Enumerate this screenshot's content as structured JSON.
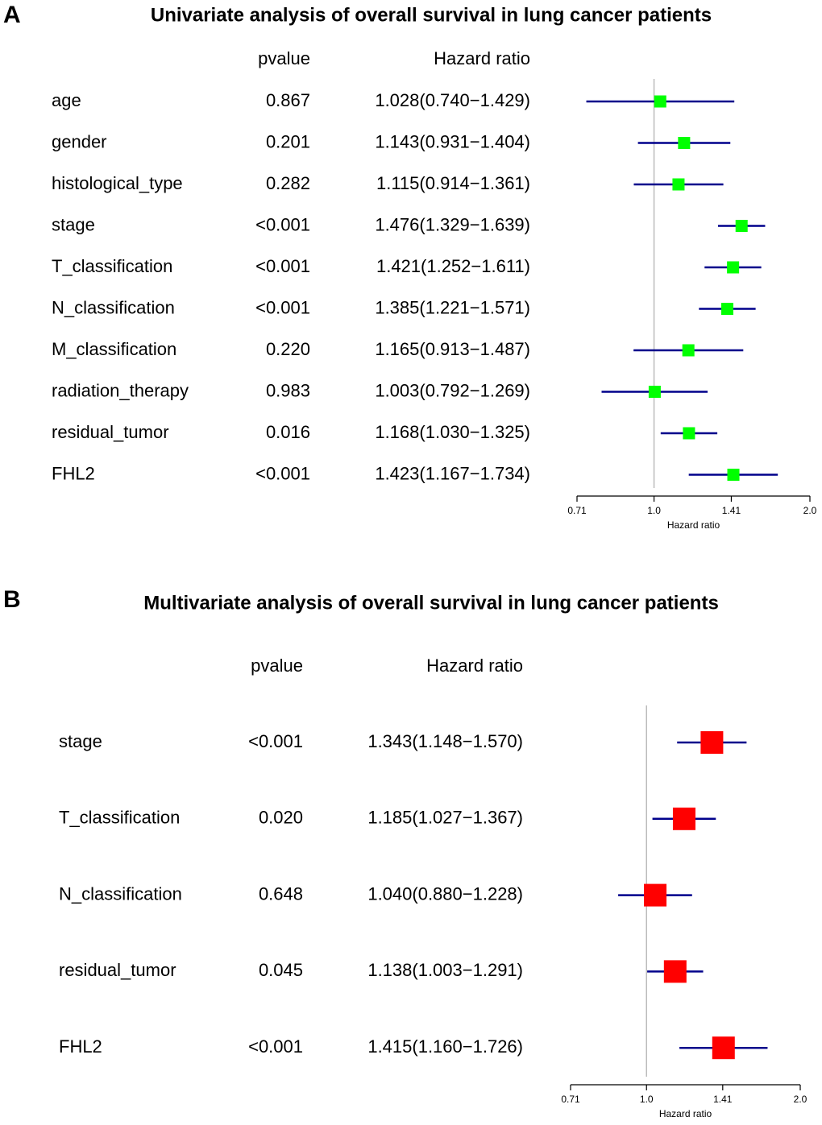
{
  "chart_data": [
    {
      "type": "forest",
      "panel_label": "A",
      "title": "Univariate analysis of overall survival in lung cancer patients",
      "columns": [
        "pvalue",
        "Hazard ratio"
      ],
      "categories": [
        "age",
        "gender",
        "histological_type",
        "stage",
        "T_classification",
        "N_classification",
        "M_classification",
        "radiation_therapy",
        "residual_tumor",
        "FHL2"
      ],
      "pvalues": [
        "0.867",
        "0.201",
        "0.282",
        "<0.001",
        "<0.001",
        "<0.001",
        "0.220",
        "0.983",
        "0.016",
        "<0.001"
      ],
      "value_labels": [
        "1.028(0.740−1.429)",
        "1.143(0.931−1.404)",
        "1.115(0.914−1.361)",
        "1.476(1.329−1.639)",
        "1.421(1.252−1.611)",
        "1.385(1.221−1.571)",
        "1.165(0.913−1.487)",
        "1.003(0.792−1.269)",
        "1.168(1.030−1.325)",
        "1.423(1.167−1.734)"
      ],
      "values": [
        1.028,
        1.143,
        1.115,
        1.476,
        1.421,
        1.385,
        1.165,
        1.003,
        1.168,
        1.423
      ],
      "lower": [
        0.74,
        0.931,
        0.914,
        1.329,
        1.252,
        1.221,
        0.913,
        0.792,
        1.03,
        1.167
      ],
      "upper": [
        1.429,
        1.404,
        1.361,
        1.639,
        1.611,
        1.571,
        1.487,
        1.269,
        1.325,
        1.734
      ],
      "color": "#00ff00",
      "line_color": "#00008b",
      "log_x": true,
      "xlim": [
        0.71,
        2.0
      ],
      "xticks": [
        0.71,
        {
          "value": 1.0,
          "label": "1.0"
        },
        1.41,
        {
          "value": 2.0,
          "label": "2.0"
        }
      ],
      "refline": 1,
      "xlabel": "Hazard ratio"
    },
    {
      "type": "forest",
      "panel_label": "B",
      "title": "Multivariate analysis of overall survival in lung cancer patients",
      "columns": [
        "pvalue",
        "Hazard ratio"
      ],
      "categories": [
        "stage",
        "T_classification",
        "N_classification",
        "residual_tumor",
        "FHL2"
      ],
      "pvalues": [
        "<0.001",
        "0.020",
        "0.648",
        "0.045",
        "<0.001"
      ],
      "value_labels": [
        "1.343(1.148−1.570)",
        "1.185(1.027−1.367)",
        "1.040(0.880−1.228)",
        "1.138(1.003−1.291)",
        "1.415(1.160−1.726)"
      ],
      "values": [
        1.343,
        1.185,
        1.04,
        1.138,
        1.415
      ],
      "lower": [
        1.148,
        1.027,
        0.88,
        1.003,
        1.16
      ],
      "upper": [
        1.57,
        1.367,
        1.228,
        1.291,
        1.726
      ],
      "color": "#ff0000",
      "line_color": "#00008b",
      "log_x": true,
      "xlim": [
        0.71,
        2.0
      ],
      "xticks": [
        0.71,
        {
          "value": 1.0,
          "label": "1.0"
        },
        1.41,
        {
          "value": 2.0,
          "label": "2.0"
        }
      ],
      "refline": 1,
      "xlabel": "Hazard ratio"
    }
  ]
}
